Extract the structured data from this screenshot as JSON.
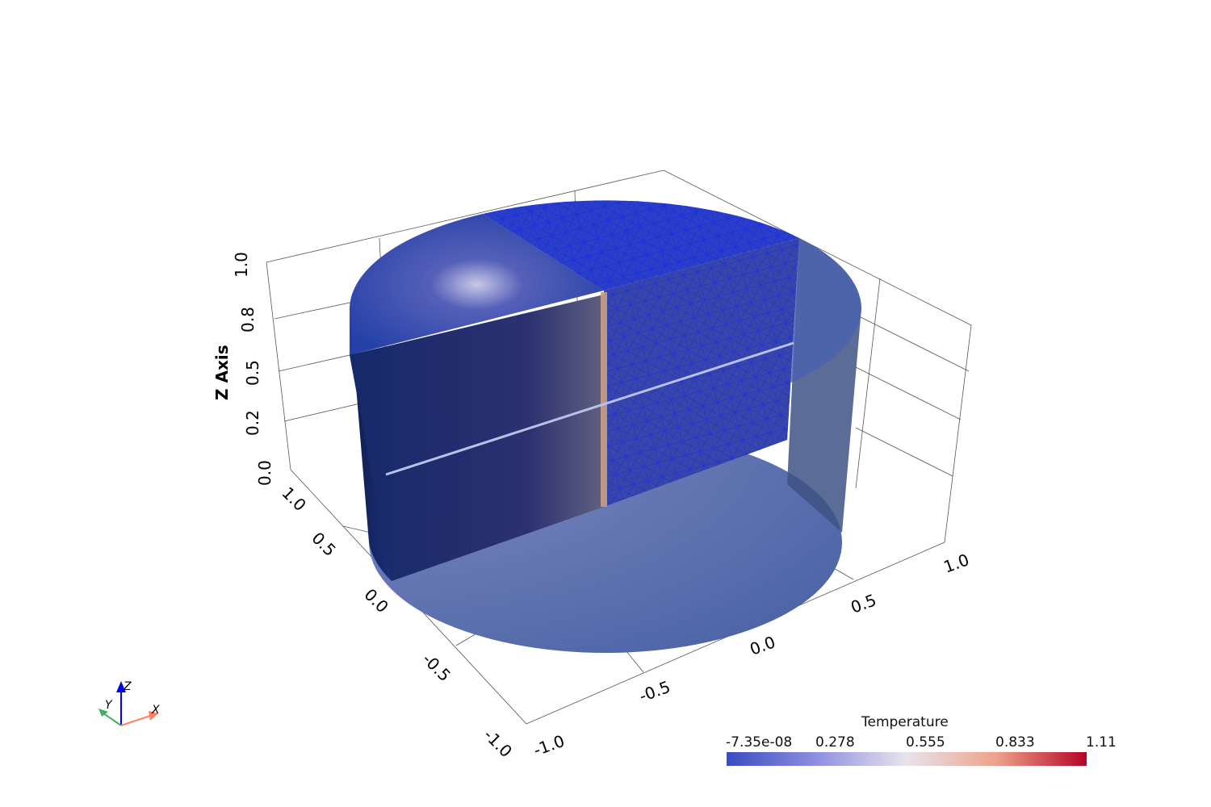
{
  "axes": {
    "z_title": "Z Axis",
    "z_ticks": [
      "0.0",
      "0.2",
      "0.5",
      "0.8",
      "1.0"
    ],
    "y_ticks": [
      "1.0",
      "0.5",
      "0.0",
      "-0.5",
      "-1.0"
    ],
    "x_ticks": [
      "-1.0",
      "-0.5",
      "0.0",
      "0.5",
      "1.0"
    ]
  },
  "orientation_widget": {
    "x": "X",
    "y": "Y",
    "z": "Z"
  },
  "scalar_bar": {
    "title": "Temperature",
    "labels": [
      "-7.35e-08",
      "0.278",
      "0.555",
      "0.833",
      "1.11"
    ],
    "range": [
      -7.35e-08,
      1.11
    ],
    "colormap": [
      "#3b4cc0",
      "#dddddd",
      "#b40426"
    ]
  },
  "colors": {
    "mesh_edges": "#0000cc",
    "surface": "#2a3f9a"
  }
}
